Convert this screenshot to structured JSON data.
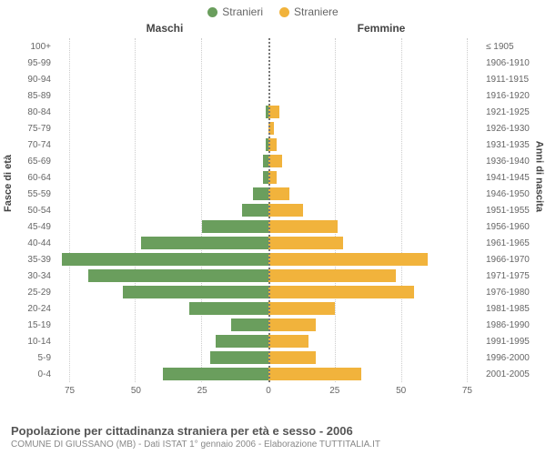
{
  "legend": {
    "male": {
      "label": "Stranieri",
      "color": "#6a9e5d"
    },
    "female": {
      "label": "Straniere",
      "color": "#f1b33c"
    }
  },
  "columns": {
    "left": "Maschi",
    "right": "Femmine"
  },
  "axes": {
    "left_label": "Fasce di età",
    "right_label": "Anni di nascita",
    "x_ticks_left": [
      75,
      50,
      25,
      0
    ],
    "x_ticks_right": [
      0,
      25,
      50,
      75
    ],
    "x_max": 80,
    "grid_color": "#cccccc"
  },
  "age_labels": [
    "100+",
    "95-99",
    "90-94",
    "85-89",
    "80-84",
    "75-79",
    "70-74",
    "65-69",
    "60-64",
    "55-59",
    "50-54",
    "45-49",
    "40-44",
    "35-39",
    "30-34",
    "25-29",
    "20-24",
    "15-19",
    "10-14",
    "5-9",
    "0-4"
  ],
  "year_labels": [
    "≤ 1905",
    "1906-1910",
    "1911-1915",
    "1916-1920",
    "1921-1925",
    "1926-1930",
    "1931-1935",
    "1936-1940",
    "1941-1945",
    "1946-1950",
    "1951-1955",
    "1956-1960",
    "1961-1965",
    "1966-1970",
    "1971-1975",
    "1976-1980",
    "1981-1985",
    "1986-1990",
    "1991-1995",
    "1996-2000",
    "2001-2005"
  ],
  "male_values": [
    0,
    0,
    0,
    0,
    1,
    0,
    1,
    2,
    2,
    6,
    10,
    25,
    48,
    78,
    68,
    55,
    30,
    14,
    20,
    22,
    40
  ],
  "female_values": [
    0,
    0,
    0,
    0,
    4,
    2,
    3,
    5,
    3,
    8,
    13,
    26,
    28,
    60,
    48,
    55,
    25,
    18,
    15,
    18,
    35
  ],
  "footer": {
    "title": "Popolazione per cittadinanza straniera per età e sesso - 2006",
    "subtitle": "COMUNE DI GIUSSANO (MB) - Dati ISTAT 1° gennaio 2006 - Elaborazione TUTTITALIA.IT"
  },
  "styling": {
    "background": "#ffffff",
    "text_color": "#666666",
    "font_family": "Arial",
    "bar_gap_pct": 22
  }
}
